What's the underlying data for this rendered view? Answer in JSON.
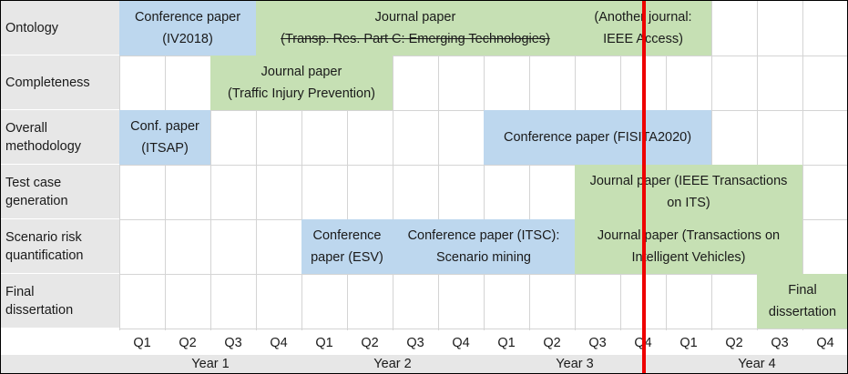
{
  "rows": [
    {
      "label": [
        "Ontology"
      ]
    },
    {
      "label": [
        "Completeness"
      ]
    },
    {
      "label": [
        "Overall",
        "methodology"
      ]
    },
    {
      "label": [
        "Test case",
        "generation"
      ]
    },
    {
      "label": [
        "Scenario risk",
        "quantification"
      ]
    },
    {
      "label": [
        "Final",
        "dissertation"
      ]
    }
  ],
  "quarters": [
    "Q1",
    "Q2",
    "Q3",
    "Q4",
    "Q1",
    "Q2",
    "Q3",
    "Q4",
    "Q1",
    "Q2",
    "Q3",
    "Q4",
    "Q1",
    "Q2",
    "Q3",
    "Q4"
  ],
  "years": [
    "Year 1",
    "Year 2",
    "Year 3",
    "Year 4"
  ],
  "bars": [
    {
      "row": 0,
      "start": 0,
      "span": 3,
      "color": "blue",
      "lines": [
        "Conference paper",
        "(IV2018)"
      ]
    },
    {
      "row": 0,
      "start": 3,
      "span": 7,
      "color": "green",
      "lines": [
        "Journal paper",
        "(Transp. Res. Part C: Emerging Technologies)"
      ],
      "strike_line": 1
    },
    {
      "row": 0,
      "start": 10,
      "span": 3,
      "color": "green",
      "lines": [
        "(Another journal:",
        "IEEE Access)"
      ]
    },
    {
      "row": 1,
      "start": 2,
      "span": 4,
      "color": "green",
      "lines": [
        "Journal paper",
        "(Traffic Injury Prevention)"
      ]
    },
    {
      "row": 2,
      "start": 0,
      "span": 2,
      "color": "blue",
      "lines": [
        "Conf. paper",
        "(ITSAP)"
      ]
    },
    {
      "row": 2,
      "start": 8,
      "span": 5,
      "color": "blue",
      "lines": [
        "Conference paper (FISITA2020)"
      ]
    },
    {
      "row": 3,
      "start": 10,
      "span": 5,
      "color": "green",
      "lines": [
        "Journal paper (IEEE Transactions",
        "on ITS)"
      ]
    },
    {
      "row": 4,
      "start": 4,
      "span": 2,
      "color": "blue",
      "lines": [
        "Conference",
        "paper (ESV)"
      ]
    },
    {
      "row": 4,
      "start": 6,
      "span": 4,
      "color": "blue",
      "lines": [
        "Conference paper (ITSC):",
        "Scenario mining"
      ]
    },
    {
      "row": 4,
      "start": 10,
      "span": 5,
      "color": "green",
      "lines": [
        "Journal paper (Transactions on",
        "Intelligent Vehicles)"
      ]
    },
    {
      "row": 5,
      "start": 14,
      "span": 2,
      "color": "green",
      "lines": [
        "Final",
        "dissertation"
      ]
    }
  ],
  "colors": {
    "blue": "#bdd7ee",
    "green": "#c6e0b4",
    "now_line": "#ee0000"
  },
  "current_time_marker": "Year 3 Q4"
}
